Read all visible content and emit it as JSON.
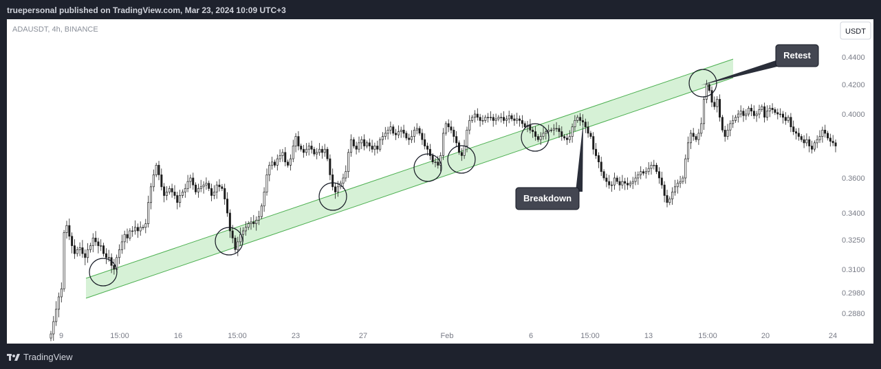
{
  "header": {
    "publish_line": "truepersonal published on TradingView.com, Mar 23, 2024 10:09 UTC+3"
  },
  "chart_data": {
    "type": "candlestick",
    "symbol_line": "ADAUSDT, 4h, BINANCE",
    "currency": "USDT",
    "y_ticks": [
      "0.4400",
      "0.4200",
      "0.4000",
      "0.3600",
      "0.3400",
      "0.3250",
      "0.3100",
      "0.2980",
      "0.2880"
    ],
    "x_ticks": [
      "9",
      "15:00",
      "16",
      "15:00",
      "23",
      "27",
      "Feb",
      "6",
      "15:00",
      "13",
      "15:00",
      "20",
      "24"
    ],
    "annotations": [
      "Retest",
      "Breakdown"
    ],
    "up_color": "#1c1c1c",
    "down_color": "#1c1c1c",
    "channel_color": "#4caf50",
    "channel_fill": "#c8ecc8",
    "series": {
      "name": "",
      "close": [
        0.278,
        0.284,
        0.29,
        0.296,
        0.3,
        0.329,
        0.333,
        0.327,
        0.322,
        0.318,
        0.32,
        0.321,
        0.318,
        0.316,
        0.32,
        0.322,
        0.326,
        0.324,
        0.322,
        0.322,
        0.318,
        0.316,
        0.316,
        0.312,
        0.31,
        0.316,
        0.32,
        0.324,
        0.328,
        0.326,
        0.33,
        0.33,
        0.332,
        0.33,
        0.332,
        0.332,
        0.334,
        0.346,
        0.355,
        0.362,
        0.368,
        0.362,
        0.355,
        0.35,
        0.352,
        0.354,
        0.352,
        0.35,
        0.346,
        0.35,
        0.352,
        0.354,
        0.358,
        0.36,
        0.356,
        0.352,
        0.354,
        0.355,
        0.356,
        0.357,
        0.354,
        0.35,
        0.352,
        0.356,
        0.355,
        0.354,
        0.348,
        0.34,
        0.33,
        0.326,
        0.32,
        0.324,
        0.328,
        0.33,
        0.332,
        0.334,
        0.335,
        0.334,
        0.336,
        0.338,
        0.344,
        0.352,
        0.362,
        0.368,
        0.37,
        0.368,
        0.372,
        0.374,
        0.376,
        0.37,
        0.368,
        0.372,
        0.38,
        0.386,
        0.38,
        0.378,
        0.376,
        0.378,
        0.38,
        0.378,
        0.375,
        0.376,
        0.378,
        0.376,
        0.378,
        0.372,
        0.362,
        0.355,
        0.352,
        0.355,
        0.357,
        0.36,
        0.364,
        0.376,
        0.384,
        0.38,
        0.378,
        0.382,
        0.384,
        0.38,
        0.382,
        0.38,
        0.378,
        0.38,
        0.378,
        0.384,
        0.386,
        0.388,
        0.39,
        0.392,
        0.388,
        0.387,
        0.389,
        0.39,
        0.388,
        0.385,
        0.384,
        0.386,
        0.39,
        0.391,
        0.388,
        0.384,
        0.38,
        0.378,
        0.374,
        0.37,
        0.37,
        0.368,
        0.374,
        0.388,
        0.394,
        0.392,
        0.39,
        0.386,
        0.382,
        0.376,
        0.374,
        0.38,
        0.39,
        0.396,
        0.398,
        0.4,
        0.398,
        0.396,
        0.396,
        0.398,
        0.398,
        0.398,
        0.396,
        0.397,
        0.398,
        0.398,
        0.396,
        0.397,
        0.399,
        0.397,
        0.396,
        0.397,
        0.396,
        0.394,
        0.392,
        0.393,
        0.39,
        0.389,
        0.386,
        0.384,
        0.386,
        0.388,
        0.389,
        0.39,
        0.39,
        0.391,
        0.391,
        0.389,
        0.386,
        0.385,
        0.384,
        0.386,
        0.392,
        0.396,
        0.398,
        0.396,
        0.395,
        0.392,
        0.388,
        0.386,
        0.378,
        0.374,
        0.37,
        0.364,
        0.36,
        0.358,
        0.356,
        0.356,
        0.36,
        0.358,
        0.356,
        0.358,
        0.357,
        0.356,
        0.357,
        0.358,
        0.36,
        0.362,
        0.364,
        0.363,
        0.364,
        0.366,
        0.368,
        0.368,
        0.364,
        0.36,
        0.356,
        0.35,
        0.346,
        0.348,
        0.352,
        0.355,
        0.357,
        0.358,
        0.36,
        0.372,
        0.382,
        0.388,
        0.386,
        0.384,
        0.388,
        0.394,
        0.41,
        0.42,
        0.416,
        0.408,
        0.405,
        0.41,
        0.398,
        0.39,
        0.386,
        0.39,
        0.394,
        0.396,
        0.398,
        0.4,
        0.402,
        0.399,
        0.4,
        0.404,
        0.402,
        0.399,
        0.4,
        0.403,
        0.405,
        0.398,
        0.402,
        0.404,
        0.403,
        0.401,
        0.4,
        0.4,
        0.398,
        0.396,
        0.398,
        0.392,
        0.389,
        0.388,
        0.386,
        0.384,
        0.382,
        0.384,
        0.38,
        0.378,
        0.382,
        0.384,
        0.386,
        0.39,
        0.388,
        0.385,
        0.383,
        0.382,
        0.38
      ]
    }
  }
}
